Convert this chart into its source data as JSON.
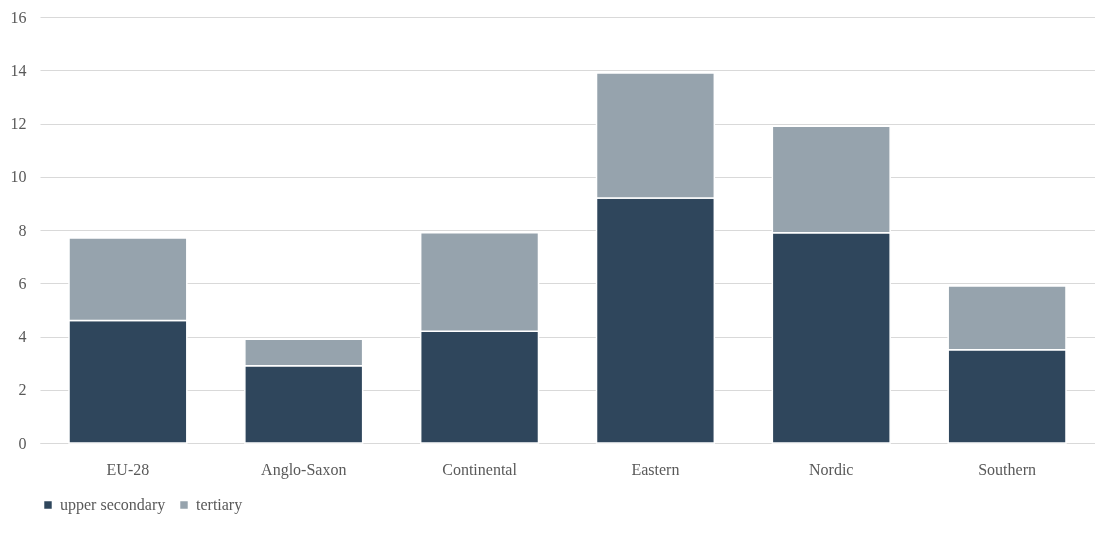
{
  "chart_data": {
    "type": "bar",
    "stacked": true,
    "categories": [
      "EU-28",
      "Anglo-Saxon",
      "Continental",
      "Eastern",
      "Nordic",
      "Southern"
    ],
    "series": [
      {
        "name": "upper secondary",
        "color": "#2f465c",
        "values": [
          4.6,
          2.9,
          4.2,
          9.2,
          7.9,
          3.5
        ]
      },
      {
        "name": "tertiary",
        "color": "#96a3ad",
        "values": [
          3.1,
          1.0,
          3.7,
          4.7,
          4.0,
          2.4
        ]
      }
    ],
    "ylim": [
      0,
      16
    ],
    "yticks": [
      0,
      2,
      4,
      6,
      8,
      10,
      12,
      14,
      16
    ],
    "grid": "y",
    "legend": "bottom"
  }
}
